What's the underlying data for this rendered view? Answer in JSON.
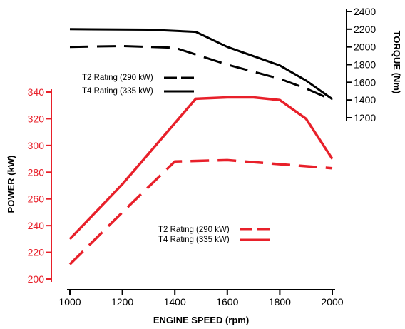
{
  "colors": {
    "power": "#e8202a",
    "torque": "#000000"
  },
  "chart_data": {
    "type": "line",
    "x": [
      1000,
      1200,
      1400,
      1480,
      1600,
      1700,
      1800,
      1900,
      2000
    ],
    "xlabel": "ENGINE SPEED (rpm)",
    "xlim": [
      1000,
      2000
    ],
    "xticks": [
      "1000",
      "1200",
      "1400",
      "1600",
      "1800",
      "2000"
    ],
    "power_axis": {
      "label": "POWER (kW)",
      "ylim": [
        200,
        340
      ],
      "ticks": [
        "340",
        "320",
        "300",
        "280",
        "260",
        "240",
        "220",
        "200"
      ]
    },
    "torque_axis": {
      "label": "TORQUE (Nm)",
      "ylim": [
        1200,
        2400
      ],
      "ticks": [
        "2400",
        "2200",
        "2000",
        "1800",
        "1600",
        "1400",
        "1200"
      ]
    },
    "series": [
      {
        "name": "T4 Rating (335 kW)",
        "group": "torque",
        "style": "solid",
        "x": [
          1000,
          1300,
          1480,
          1600,
          1800,
          1900,
          2000
        ],
        "values": [
          2200,
          2195,
          2170,
          2000,
          1790,
          1620,
          1410
        ]
      },
      {
        "name": "T2 Rating (290 kW)",
        "group": "torque",
        "style": "dashed",
        "x": [
          1000,
          1200,
          1400,
          1600,
          1800,
          1900,
          2000
        ],
        "values": [
          2000,
          2010,
          1990,
          1800,
          1640,
          1530,
          1400
        ]
      },
      {
        "name": "T4 Rating (335 kW)",
        "group": "power",
        "style": "solid",
        "x": [
          1000,
          1200,
          1480,
          1600,
          1700,
          1800,
          1900,
          2000
        ],
        "values": [
          230,
          271,
          335,
          336,
          336,
          334,
          320,
          290
        ]
      },
      {
        "name": "T2 Rating (290 kW)",
        "group": "power",
        "style": "dashed",
        "x": [
          1000,
          1200,
          1400,
          1600,
          1800,
          2000
        ],
        "values": [
          211,
          250,
          288,
          289,
          286,
          283
        ]
      }
    ],
    "legends": {
      "torque": [
        "T2 Rating (290 kW)",
        "T4 Rating (335 kW)"
      ],
      "power": [
        "T2 Rating (290 kW)",
        "T4 Rating (335 kW)"
      ]
    }
  }
}
